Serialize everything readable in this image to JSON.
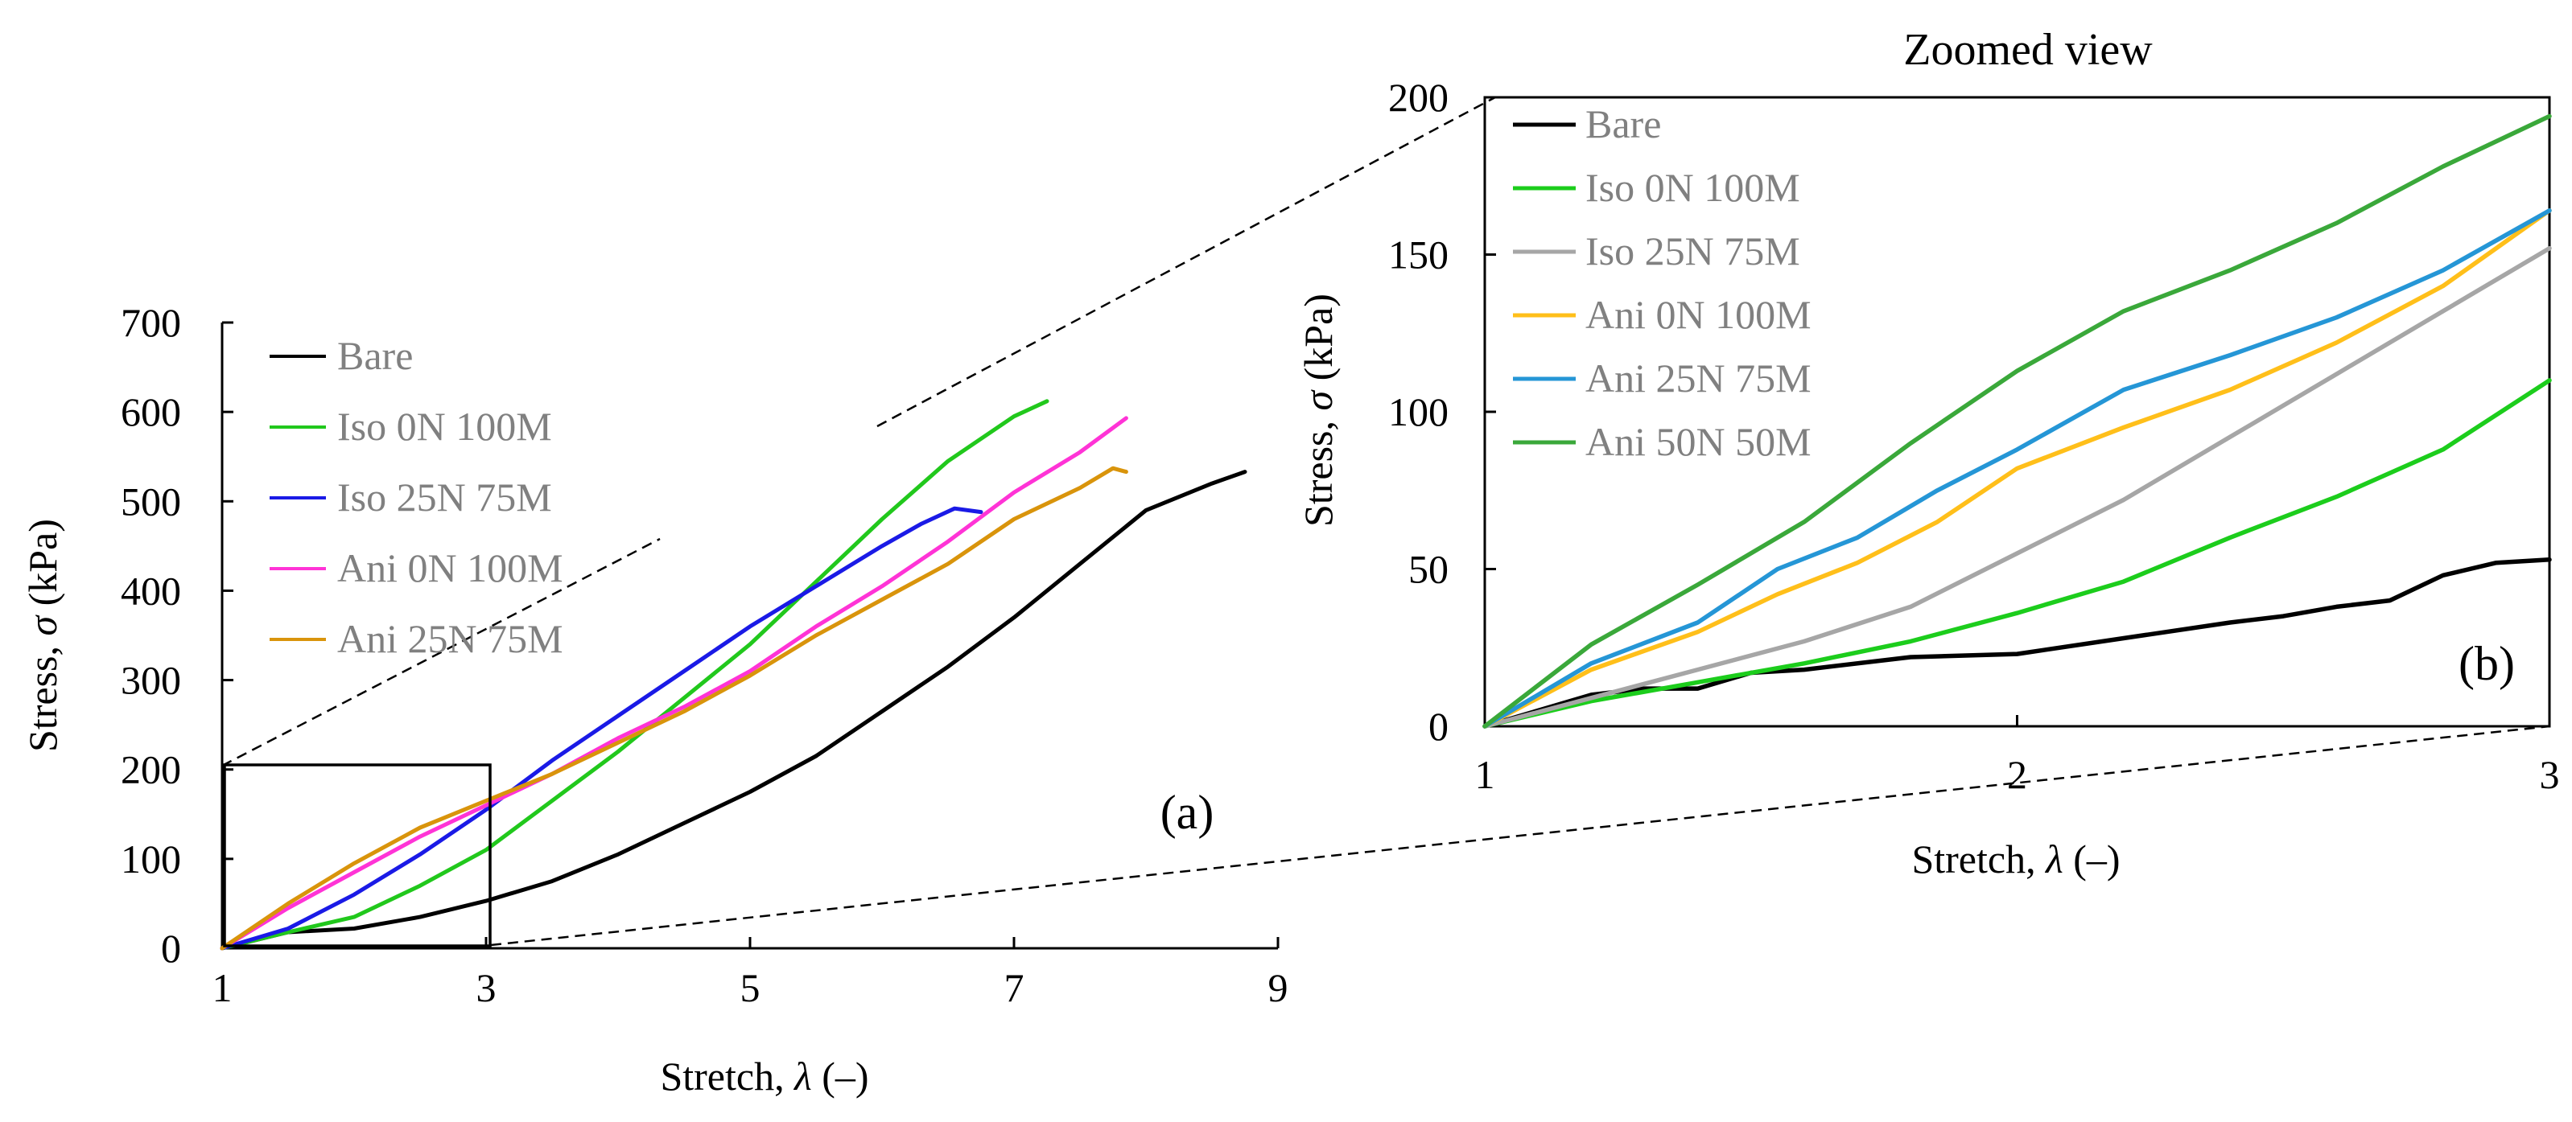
{
  "colors": {
    "bare": "#000000",
    "iso_0n_a": "#21c81c",
    "iso_25n_a": "#1a1ae6",
    "ani_0n_a": "#ff33d6",
    "ani_25n_a": "#d9940b",
    "iso_0n_b": "#1ccd1c",
    "iso_25n_b": "#a6a6a6",
    "ani_0n_b": "#ffbf1a",
    "ani_25n_b": "#2596d6",
    "ani_50n_b": "#3aa83a"
  },
  "chart_data": [
    {
      "type": "line",
      "panel_label": "(a)",
      "xlabel_text": "Stretch, ",
      "xlabel_symbol": "λ",
      "xlabel_unit": " (–)",
      "ylabel_text": "Stress, ",
      "ylabel_symbol": "σ",
      "ylabel_unit": " (kPa)",
      "xlim": [
        1,
        9
      ],
      "ylim": [
        0,
        700
      ],
      "xticks": [
        "1",
        "3",
        "5",
        "7",
        "9"
      ],
      "yticks": [
        "0",
        "100",
        "200",
        "300",
        "400",
        "500",
        "600",
        "700"
      ],
      "legend_position": "top-left",
      "zoom_box": {
        "x": [
          1,
          3
        ],
        "y": [
          0,
          205
        ]
      },
      "series": [
        {
          "name": "Bare",
          "color_key": "bare",
          "x": [
            1,
            1.5,
            2,
            2.5,
            3,
            3.5,
            4,
            4.5,
            5,
            5.5,
            6,
            6.5,
            7,
            7.5,
            8,
            8.5,
            8.75
          ],
          "y": [
            0,
            18,
            22,
            35,
            53,
            75,
            105,
            140,
            175,
            215,
            265,
            315,
            370,
            430,
            490,
            520,
            533
          ]
        },
        {
          "name": "Iso 0N 100M",
          "color_key": "iso_0n_a",
          "x": [
            1,
            1.5,
            2,
            2.5,
            3,
            3.5,
            4,
            4.5,
            5,
            5.5,
            6,
            6.5,
            7,
            7.25
          ],
          "y": [
            0,
            18,
            35,
            70,
            110,
            165,
            220,
            280,
            340,
            410,
            480,
            545,
            595,
            612
          ]
        },
        {
          "name": "Iso 25N 75M",
          "color_key": "iso_25n_a",
          "x": [
            1,
            1.5,
            2,
            2.5,
            3,
            3.5,
            4,
            4.5,
            5,
            5.5,
            6,
            6.3,
            6.55,
            6.75
          ],
          "y": [
            0,
            22,
            60,
            105,
            155,
            210,
            260,
            310,
            360,
            405,
            450,
            475,
            492,
            488
          ]
        },
        {
          "name": "Ani 0N 100M",
          "color_key": "ani_0n_a",
          "x": [
            1,
            1.5,
            2,
            2.5,
            3,
            3.5,
            4,
            4.5,
            5,
            5.5,
            6,
            6.5,
            7,
            7.5,
            7.85
          ],
          "y": [
            0,
            45,
            85,
            125,
            160,
            195,
            235,
            270,
            310,
            360,
            405,
            455,
            510,
            555,
            593
          ]
        },
        {
          "name": "Ani 25N 75M",
          "color_key": "ani_25n_a",
          "x": [
            1,
            1.5,
            2,
            2.5,
            3,
            3.5,
            4,
            4.5,
            5,
            5.5,
            6,
            6.5,
            7,
            7.5,
            7.75,
            7.85
          ],
          "y": [
            0,
            50,
            95,
            135,
            165,
            195,
            230,
            265,
            305,
            350,
            390,
            430,
            480,
            515,
            537,
            533
          ]
        }
      ]
    },
    {
      "type": "line",
      "panel_label": "(b)",
      "title": "Zoomed view",
      "xlabel_text": "Stretch, ",
      "xlabel_symbol": "λ",
      "xlabel_unit": " (–)",
      "ylabel_text": "Stress, ",
      "ylabel_symbol": "σ",
      "ylabel_unit": " (kPa)",
      "xlim": [
        1,
        3
      ],
      "ylim": [
        0,
        200
      ],
      "xticks": [
        "1",
        "2",
        "3"
      ],
      "yticks": [
        "0",
        "50",
        "100",
        "150",
        "200"
      ],
      "legend_position": "top-left",
      "series": [
        {
          "name": "Bare",
          "color_key": "bare",
          "x": [
            1,
            1.2,
            1.3,
            1.4,
            1.5,
            1.6,
            1.8,
            2.0,
            2.2,
            2.4,
            2.5,
            2.6,
            2.7,
            2.8,
            2.9,
            3.0
          ],
          "y": [
            0,
            10,
            12,
            12,
            17,
            18,
            22,
            23,
            28,
            33,
            35,
            38,
            40,
            48,
            52,
            53
          ]
        },
        {
          "name": "Iso 0N 100M",
          "color_key": "iso_0n_b",
          "x": [
            1,
            1.2,
            1.4,
            1.6,
            1.8,
            2.0,
            2.2,
            2.4,
            2.6,
            2.8,
            3.0
          ],
          "y": [
            0,
            8,
            14,
            20,
            27,
            36,
            46,
            60,
            73,
            88,
            110
          ]
        },
        {
          "name": "Iso 25N 75M",
          "color_key": "iso_25n_b",
          "x": [
            1,
            1.2,
            1.4,
            1.6,
            1.8,
            2.0,
            2.2,
            2.4,
            2.6,
            2.8,
            3.0
          ],
          "y": [
            0,
            9,
            18,
            27,
            38,
            55,
            72,
            92,
            112,
            132,
            152
          ]
        },
        {
          "name": "Ani 0N 100M",
          "color_key": "ani_0n_b",
          "x": [
            1,
            1.2,
            1.4,
            1.55,
            1.7,
            1.85,
            2.0,
            2.2,
            2.4,
            2.6,
            2.8,
            3.0
          ],
          "y": [
            0,
            18,
            30,
            42,
            52,
            65,
            82,
            95,
            107,
            122,
            140,
            164
          ]
        },
        {
          "name": "Ani 25N 75M",
          "color_key": "ani_25n_b",
          "x": [
            1,
            1.2,
            1.4,
            1.55,
            1.7,
            1.85,
            2.0,
            2.2,
            2.4,
            2.6,
            2.8,
            3.0
          ],
          "y": [
            0,
            20,
            33,
            50,
            60,
            75,
            88,
            107,
            118,
            130,
            145,
            164
          ]
        },
        {
          "name": "Ani 50N 50M",
          "color_key": "ani_50n_b",
          "x": [
            1,
            1.2,
            1.4,
            1.6,
            1.8,
            2.0,
            2.2,
            2.4,
            2.6,
            2.8,
            3.0
          ],
          "y": [
            0,
            26,
            45,
            65,
            90,
            113,
            132,
            145,
            160,
            178,
            194
          ]
        }
      ]
    }
  ]
}
